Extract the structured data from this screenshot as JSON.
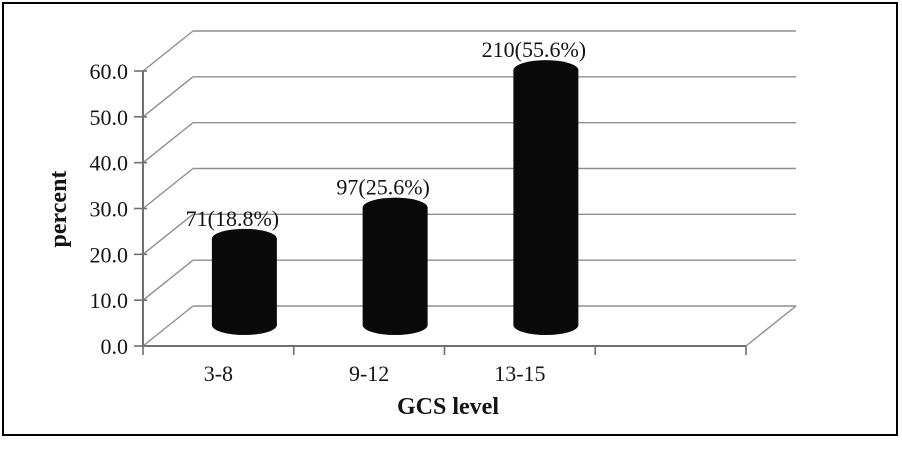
{
  "chart_data": {
    "type": "bar",
    "style": "3d-cylinder",
    "title": "",
    "xlabel": "GCS level",
    "ylabel": "percent",
    "categories": [
      "3-8",
      "9-12",
      "13-15"
    ],
    "values": [
      18.8,
      25.6,
      55.6
    ],
    "counts": [
      71,
      97,
      210
    ],
    "data_labels": [
      "71(18.8%)",
      "97(25.6%)",
      "210(55.6%)"
    ],
    "ylim": [
      0,
      60
    ],
    "ytick_step": 10,
    "ytick_labels": [
      "0.0",
      "10.0",
      "20.0",
      "30.0",
      "40.0",
      "50.0",
      "60.0"
    ],
    "grid": true,
    "legend": false,
    "colors": {
      "bar": "#0a0a0a",
      "gridline": "#8f8f8f",
      "axis": "#707070",
      "text": "#141414",
      "border": "#000000",
      "background": "#ffffff"
    }
  }
}
